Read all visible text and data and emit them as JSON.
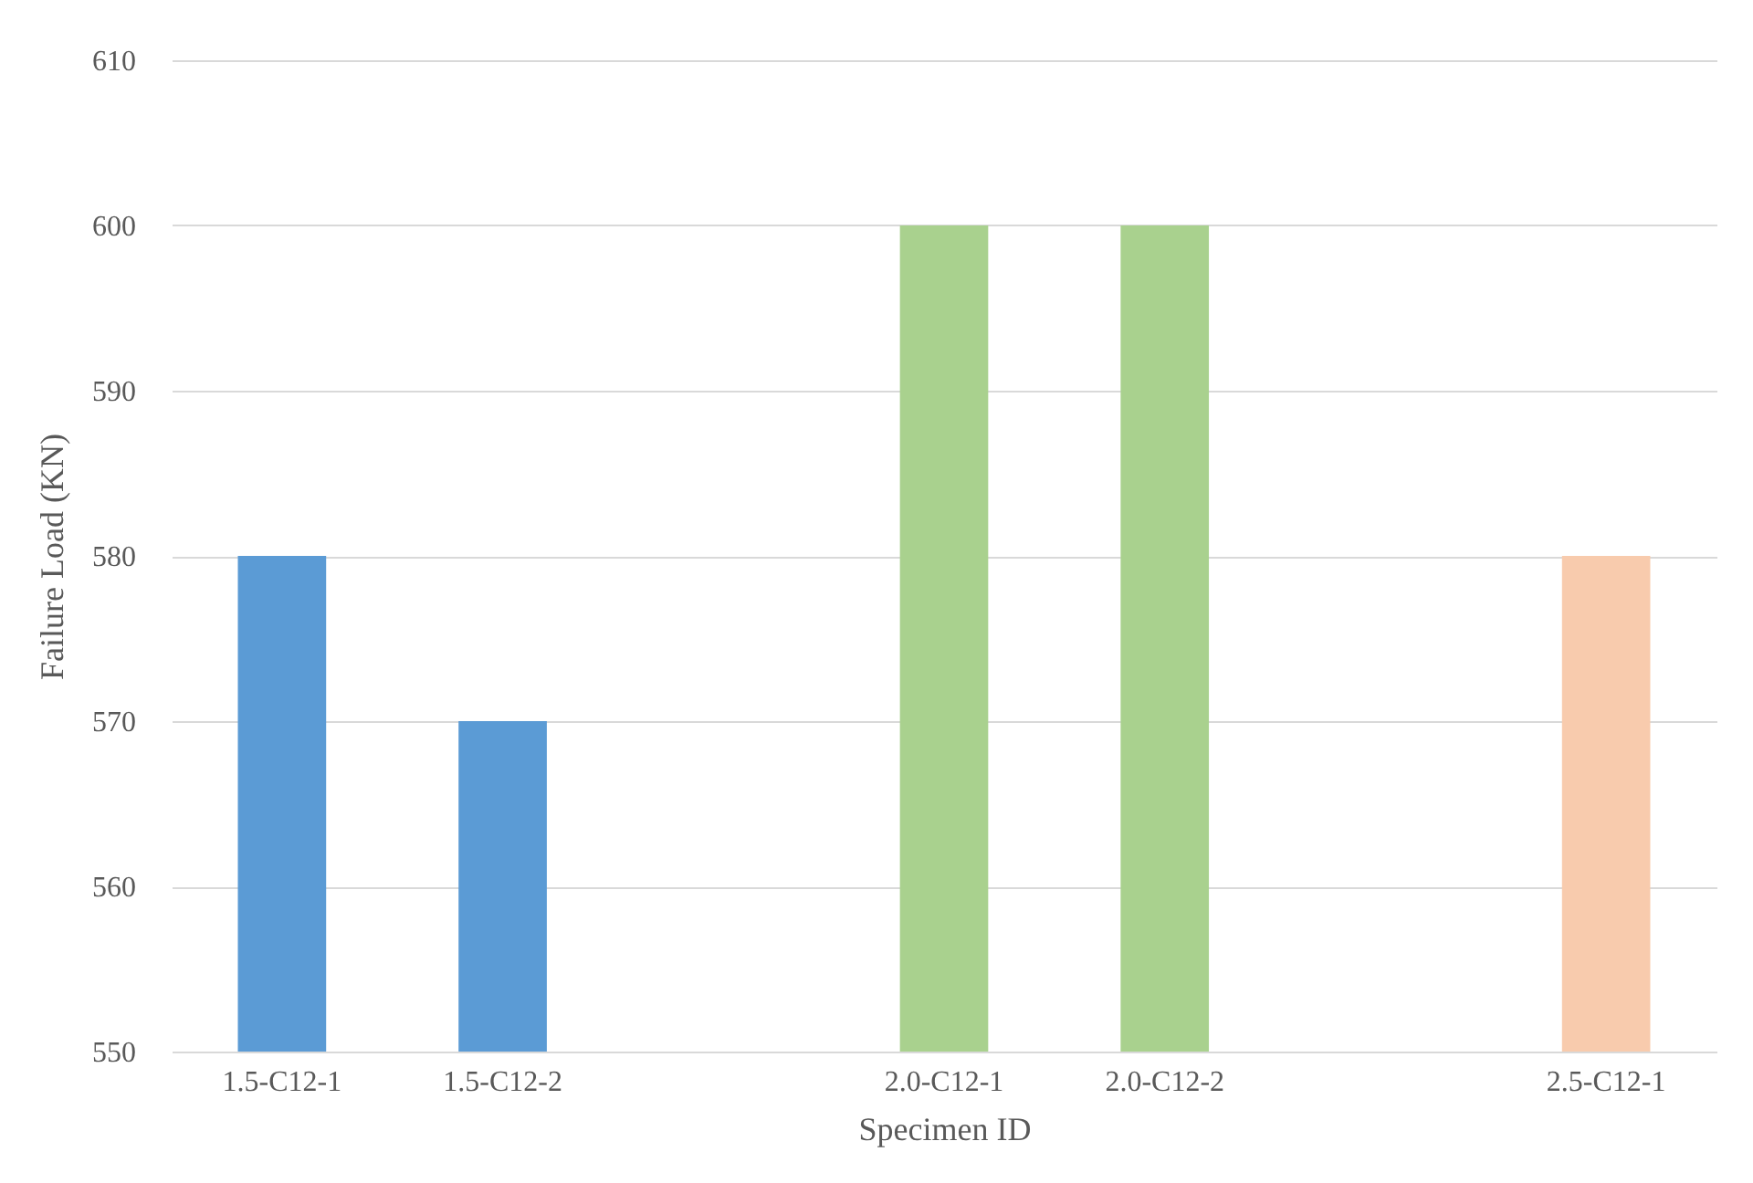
{
  "chart_data": {
    "type": "bar",
    "xlabel": "Specimen ID",
    "ylabel": "Failure Load (KN)",
    "categories": [
      "1.5-C12-1",
      "1.5-C12-2",
      null,
      "2.0-C12-1",
      "2.0-C12-2",
      null,
      "2.5-C12-1"
    ],
    "values": [
      580,
      570,
      null,
      600,
      600,
      null,
      580
    ],
    "colors": [
      "#5b9bd5",
      "#5b9bd5",
      "#5b9bd5",
      "#a9d18e",
      "#a9d18e",
      "#f8cbad",
      "#f8cbad"
    ],
    "ylim": [
      550,
      610
    ],
    "yticks": [
      550,
      560,
      570,
      580,
      590,
      600,
      610
    ],
    "grid": "y"
  }
}
